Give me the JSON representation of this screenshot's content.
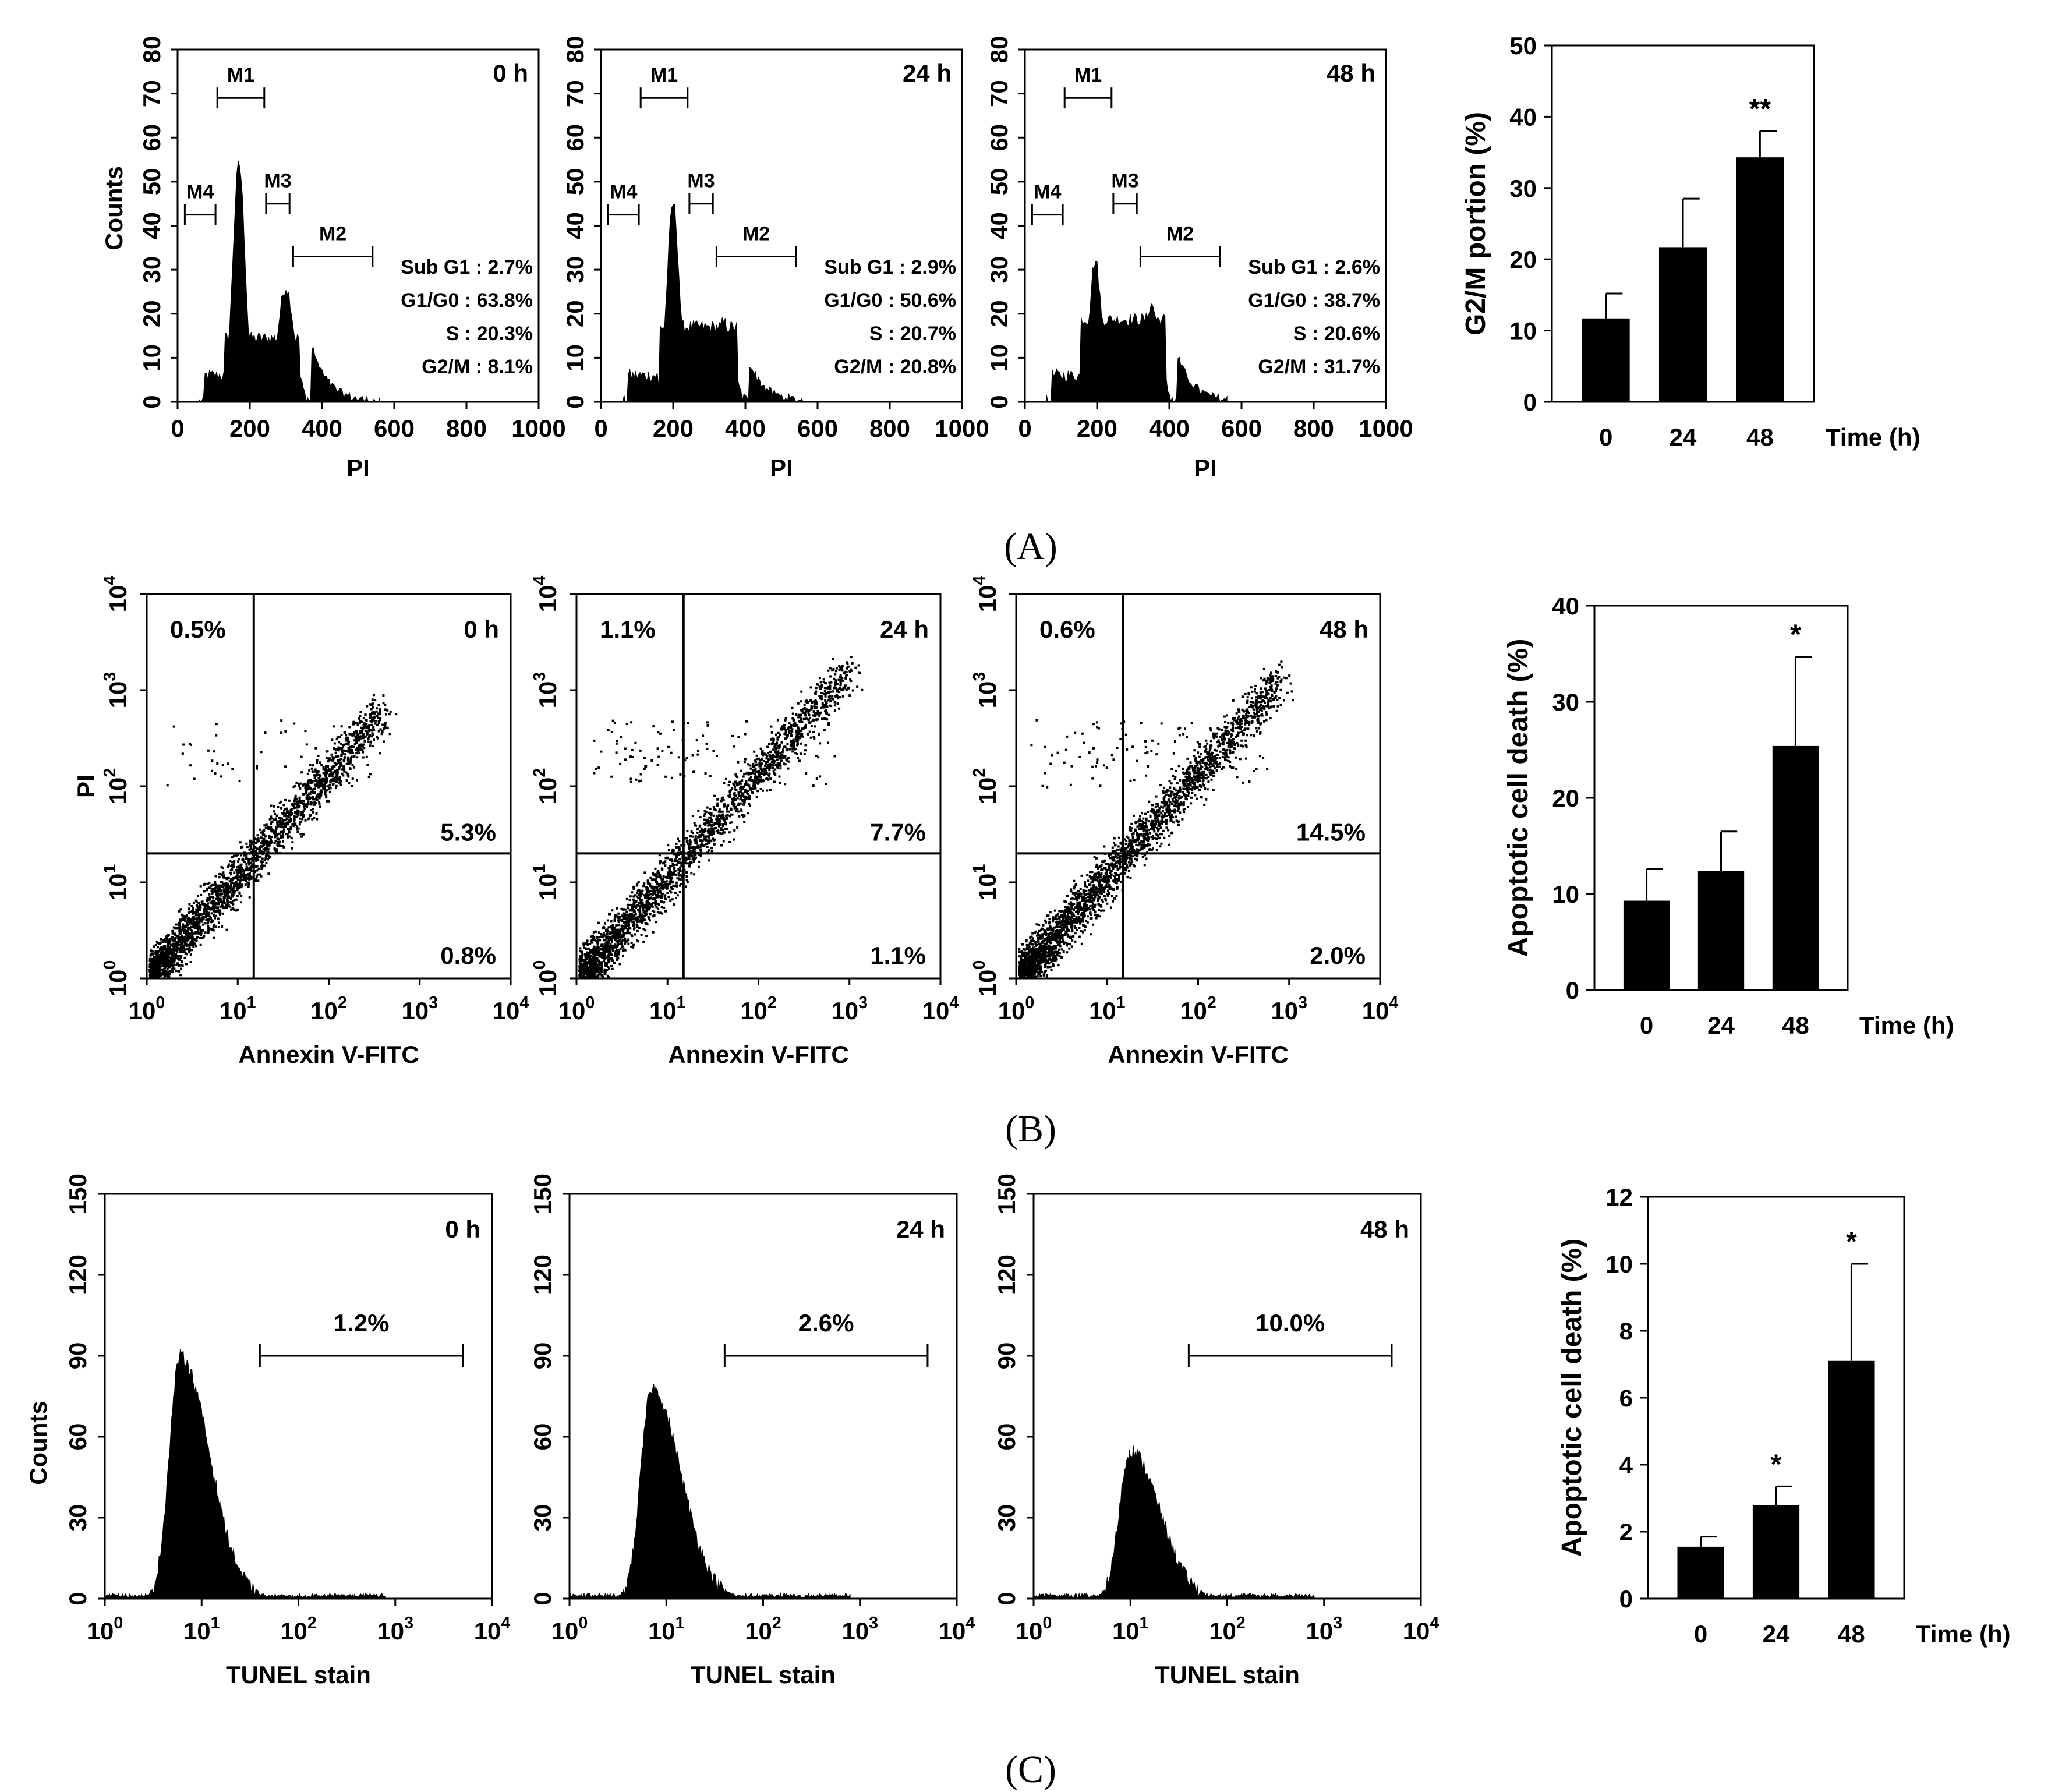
{
  "chart_data": [
    {
      "id": "A1",
      "type": "histogram",
      "xlabel": "PI",
      "ylabel": "Counts",
      "xlim": [
        0,
        1000
      ],
      "ylim": [
        0,
        80
      ],
      "xticks": [
        0,
        200,
        400,
        600,
        800,
        1000
      ],
      "yticks": [
        0,
        10,
        20,
        30,
        40,
        50,
        60,
        70,
        80
      ],
      "time_label": "0 h",
      "gates": [
        {
          "label": "M1",
          "start": 110,
          "end": 240
        },
        {
          "label": "M4",
          "start": 20,
          "end": 105
        },
        {
          "label": "M3",
          "start": 245,
          "end": 310
        },
        {
          "label": "M2",
          "start": 320,
          "end": 540
        }
      ],
      "stats": [
        "Sub G1 : 2.7%",
        "G1/G0 : 63.8%",
        "S : 20.3%",
        "G2/M : 8.1%"
      ],
      "profile": {
        "g1_pos": 170,
        "g1_height": 54,
        "g2_pos": 300,
        "g2_height": 26,
        "s_level": 17,
        "subg1_level": 6
      }
    },
    {
      "id": "A2",
      "type": "histogram",
      "xlabel": "PI",
      "ylabel": "",
      "xlim": [
        0,
        1000
      ],
      "ylim": [
        0,
        80
      ],
      "xticks": [
        0,
        200,
        400,
        600,
        800,
        1000
      ],
      "yticks": [
        0,
        10,
        20,
        30,
        40,
        50,
        60,
        70,
        80
      ],
      "time_label": "24 h",
      "gates": [
        {
          "label": "M1",
          "start": 110,
          "end": 240
        },
        {
          "label": "M4",
          "start": 20,
          "end": 105
        },
        {
          "label": "M3",
          "start": 245,
          "end": 310
        },
        {
          "label": "M2",
          "start": 320,
          "end": 540
        }
      ],
      "stats": [
        "Sub G1 : 2.9%",
        "G1/G0 : 50.6%",
        "S : 20.7%",
        "G2/M : 20.8%"
      ],
      "profile": {
        "g1_pos": 200,
        "g1_height": 45,
        "g2_pos": 340,
        "g2_height": 18,
        "s_level": 20,
        "subg1_level": 6
      }
    },
    {
      "id": "A3",
      "type": "histogram",
      "xlabel": "PI",
      "ylabel": "",
      "xlim": [
        0,
        1000
      ],
      "ylim": [
        0,
        80
      ],
      "xticks": [
        0,
        200,
        400,
        600,
        800,
        1000
      ],
      "yticks": [
        0,
        10,
        20,
        30,
        40,
        50,
        60,
        70,
        80
      ],
      "time_label": "48 h",
      "gates": [
        {
          "label": "M1",
          "start": 110,
          "end": 240
        },
        {
          "label": "M4",
          "start": 20,
          "end": 105
        },
        {
          "label": "M3",
          "start": 245,
          "end": 310
        },
        {
          "label": "M2",
          "start": 320,
          "end": 540
        }
      ],
      "stats": [
        "Sub G1 : 2.6%",
        "G1/G0 : 38.7%",
        "S : 20.6%",
        "G2/M : 31.7%"
      ],
      "profile": {
        "g1_pos": 195,
        "g1_height": 32,
        "g2_pos": 350,
        "g2_height": 22,
        "s_level": 22,
        "subg1_level": 6
      }
    },
    {
      "id": "A4",
      "type": "bar",
      "xlabel": "Time (h)",
      "ylabel": "G2/M portion (%)",
      "categories": [
        "0",
        "24",
        "48"
      ],
      "values": [
        11.7,
        21.7,
        34.3
      ],
      "errors": [
        3.5,
        6.8,
        3.7
      ],
      "significance": [
        "",
        "",
        "**"
      ],
      "ylim": [
        0,
        50
      ],
      "yticks": [
        0,
        10,
        20,
        30,
        40,
        50
      ]
    },
    {
      "id": "B1",
      "type": "scatter",
      "xlabel": "Annexin V-FITC",
      "ylabel": "PI",
      "scale": "log",
      "xlim": [
        1,
        10000
      ],
      "ylim": [
        1,
        10000
      ],
      "tick_exponents": [
        0,
        1,
        2,
        3,
        4
      ],
      "time_label": "0 h",
      "quadrants": {
        "x_threshold": 15,
        "y_threshold": 20,
        "upper_left": "0.5%",
        "upper_right": "5.3%",
        "lower_right": "0.8%"
      },
      "profile": {
        "max_x_decade": 2.6,
        "upper_scatter": 60,
        "main_count": 2600
      }
    },
    {
      "id": "B2",
      "type": "scatter",
      "xlabel": "Annexin V-FITC",
      "ylabel": "",
      "scale": "log",
      "xlim": [
        1,
        10000
      ],
      "ylim": [
        1,
        10000
      ],
      "tick_exponents": [
        0,
        1,
        2,
        3,
        4
      ],
      "time_label": "24 h",
      "quadrants": {
        "x_threshold": 15,
        "y_threshold": 20,
        "upper_left": "1.1%",
        "upper_right": "7.7%",
        "lower_right": "1.1%"
      },
      "profile": {
        "max_x_decade": 3.0,
        "upper_scatter": 120,
        "main_count": 2600
      }
    },
    {
      "id": "B3",
      "type": "scatter",
      "xlabel": "Annexin V-FITC",
      "ylabel": "",
      "scale": "log",
      "xlim": [
        1,
        10000
      ],
      "ylim": [
        1,
        10000
      ],
      "tick_exponents": [
        0,
        1,
        2,
        3,
        4
      ],
      "time_label": "48 h",
      "quadrants": {
        "x_threshold": 15,
        "y_threshold": 20,
        "upper_left": "0.6%",
        "upper_right": "14.5%",
        "lower_right": "2.0%"
      },
      "profile": {
        "max_x_decade": 2.9,
        "upper_scatter": 90,
        "main_count": 3000
      }
    },
    {
      "id": "B4",
      "type": "bar",
      "xlabel": "Time (h)",
      "ylabel": "Apoptotic cell death (%)",
      "categories": [
        "0",
        "24",
        "48"
      ],
      "values": [
        9.3,
        12.4,
        25.4
      ],
      "errors": [
        3.3,
        4.1,
        9.3
      ],
      "significance": [
        "",
        "",
        "*"
      ],
      "ylim": [
        0,
        40
      ],
      "yticks": [
        0,
        10,
        20,
        30,
        40
      ]
    },
    {
      "id": "C1",
      "type": "histogram",
      "xlabel": "TUNEL stain",
      "ylabel": "Counts",
      "scale": "log",
      "xlim": [
        1,
        10000
      ],
      "ylim": [
        0,
        150
      ],
      "tick_exponents": [
        0,
        1,
        2,
        3,
        4
      ],
      "yticks": [
        0,
        30,
        60,
        90,
        120,
        150
      ],
      "time_label": "0 h",
      "gate": {
        "label": "1.2%",
        "start": 40,
        "end": 5000
      },
      "profile": {
        "peak_decade": 0.78,
        "peak_height": 90
      }
    },
    {
      "id": "C2",
      "type": "histogram",
      "xlabel": "TUNEL stain",
      "ylabel": "",
      "scale": "log",
      "xlim": [
        1,
        10000
      ],
      "ylim": [
        0,
        150
      ],
      "tick_exponents": [
        0,
        1,
        2,
        3,
        4
      ],
      "yticks": [
        0,
        30,
        60,
        90,
        120,
        150
      ],
      "time_label": "24 h",
      "gate": {
        "label": "2.6%",
        "start": 40,
        "end": 5000
      },
      "profile": {
        "peak_decade": 0.85,
        "peak_height": 78
      }
    },
    {
      "id": "C3",
      "type": "histogram",
      "xlabel": "TUNEL stain",
      "ylabel": "",
      "scale": "log",
      "xlim": [
        1,
        10000
      ],
      "ylim": [
        0,
        150
      ],
      "tick_exponents": [
        0,
        1,
        2,
        3,
        4
      ],
      "yticks": [
        0,
        30,
        60,
        90,
        120,
        150
      ],
      "time_label": "48 h",
      "gate": {
        "label": "10.0%",
        "start": 40,
        "end": 5000
      },
      "profile": {
        "peak_decade": 1.0,
        "peak_height": 55
      }
    },
    {
      "id": "C4",
      "type": "bar",
      "xlabel": "Time (h)",
      "ylabel": "Apoptotic cell death (%)",
      "categories": [
        "0",
        "24",
        "48"
      ],
      "values": [
        1.55,
        2.8,
        7.1
      ],
      "errors": [
        0.3,
        0.55,
        2.9
      ],
      "significance": [
        "",
        "*",
        "*"
      ],
      "ylim": [
        0,
        12
      ],
      "yticks": [
        0,
        2,
        4,
        6,
        8,
        10,
        12
      ]
    }
  ],
  "panel_labels": [
    "(A)",
    "(B)",
    "(C)"
  ]
}
